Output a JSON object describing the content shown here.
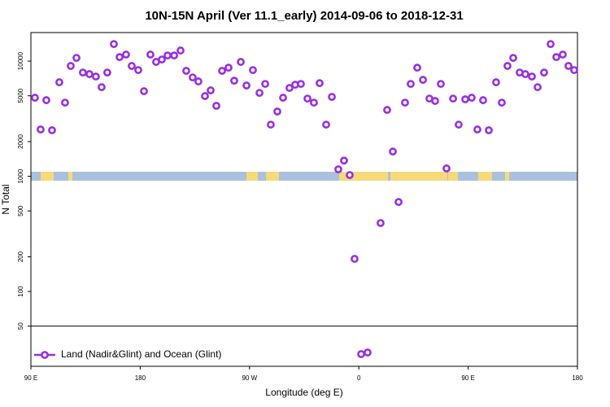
{
  "chart_data": {
    "type": "scatter",
    "title": "10N-15N April (Ver 11.1_early)   2014-09-06 to 2018-12-31",
    "xlabel": "Longitude (deg E)",
    "ylabel": "N Total",
    "log_y": true,
    "legend": "lower left",
    "xlim": [
      90,
      540
    ],
    "xticks": [
      {
        "value": 90,
        "label": "90 E"
      },
      180,
      {
        "value": 270,
        "label": "90 W"
      },
      {
        "value": 360,
        "label": "0"
      },
      {
        "value": 450,
        "label": "90 E"
      },
      {
        "value": 540,
        "label": "180"
      }
    ],
    "ylim": [
      22.4,
      17700
    ],
    "yticks": [
      50,
      100,
      200,
      500,
      1000,
      2000,
      5000,
      10000
    ],
    "series": [
      {
        "name": "Land (Nadir&Glint) and Ocean (Glint)",
        "color": "#9a2ee0",
        "x": [
          93.3,
          98.0,
          102.7,
          107.4,
          113.4,
          118.1,
          122.8,
          127.5,
          132.8,
          138.2,
          143.5,
          148.2,
          152.9,
          158.3,
          163.0,
          168.3,
          173.0,
          178.4,
          183.1,
          188.4,
          193.1,
          197.8,
          202.5,
          207.9,
          213.2,
          217.9,
          223.2,
          227.9,
          233.3,
          238.0,
          242.7,
          247.4,
          252.7,
          257.4,
          262.8,
          267.5,
          272.8,
          278.2,
          282.9,
          287.5,
          292.9,
          297.6,
          302.9,
          307.6,
          312.3,
          317.7,
          323.0,
          327.7,
          333.1,
          337.8,
          343.1,
          347.8,
          352.5,
          356.5,
          361.9,
          367.2,
          377.9,
          383.3,
          388.0,
          392.7,
          398.0,
          402.7,
          408.1,
          412.8,
          418.1,
          422.8,
          427.5,
          432.2,
          437.6,
          442.2,
          447.6,
          452.9,
          457.6,
          462.3,
          467.0,
          473.0,
          477.7,
          482.4,
          487.1,
          492.4,
          497.1,
          502.5,
          507.2,
          512.5,
          517.9,
          522.6,
          527.9,
          532.6,
          537.3
        ],
        "values": [
          4810,
          2550,
          4580,
          2510,
          6550,
          4360,
          9080,
          10670,
          7960,
          7710,
          7350,
          5940,
          7960,
          14070,
          10840,
          11400,
          9080,
          8360,
          5480,
          11400,
          9840,
          10330,
          11200,
          11200,
          12360,
          8230,
          7220,
          6660,
          4970,
          5570,
          4090,
          8230,
          8770,
          6760,
          9840,
          6140,
          8360,
          5300,
          6340,
          2810,
          3650,
          4810,
          5850,
          6240,
          6340,
          4730,
          4360,
          6440,
          2810,
          4890,
          1150,
          1370,
          1025,
          192,
          28.6,
          29.5,
          393,
          3770,
          1640,
          598,
          4360,
          6340,
          8770,
          6880,
          4730,
          4510,
          6340,
          1170,
          4730,
          2810,
          4660,
          4810,
          2550,
          4580,
          2510,
          6550,
          4360,
          9080,
          10670,
          7960,
          7710,
          7350,
          5940,
          7960,
          14070,
          10840,
          11400,
          9080,
          8360
        ]
      }
    ]
  }
}
